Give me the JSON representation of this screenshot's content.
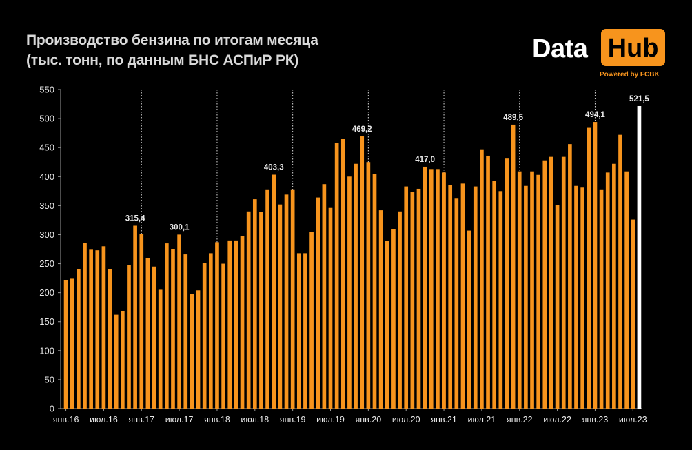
{
  "header": {
    "title_line1": "Производство бензина по итогам месяца",
    "title_line2": "(тыс. тонн, по данным БНС АСПиР РК)"
  },
  "logo": {
    "word1": "Data",
    "word2": "Hub",
    "tagline": "Powered by FCBK"
  },
  "colors": {
    "bar": "#f7941d",
    "last_bar": "#ffffff",
    "background": "#000000",
    "gridline": "#ffffff"
  },
  "chart_data": {
    "type": "bar",
    "ylim": [
      0,
      550
    ],
    "yticks": [
      0,
      50,
      100,
      150,
      200,
      250,
      300,
      350,
      400,
      450,
      500,
      550
    ],
    "xtick_labels": [
      "янв.16",
      "июл.16",
      "янв.17",
      "июл.17",
      "янв.18",
      "июл.18",
      "янв.19",
      "июл.19",
      "янв.20",
      "июл.20",
      "янв.21",
      "июл.21",
      "янв.22",
      "июл.22",
      "янв.23",
      "июл.23"
    ],
    "year_separators": [
      {
        "after_index": 12
      },
      {
        "after_index": 24
      },
      {
        "after_index": 36
      },
      {
        "after_index": 48
      },
      {
        "after_index": 60
      },
      {
        "after_index": 72
      },
      {
        "after_index": 84
      }
    ],
    "values": [
      222,
      224,
      240,
      286,
      274,
      273,
      280,
      240,
      162,
      168,
      248,
      315.4,
      301,
      260,
      245,
      205,
      285,
      275,
      300.1,
      266,
      198,
      204,
      251,
      268,
      287,
      250,
      290,
      290,
      298,
      340,
      361,
      339,
      378,
      403.3,
      352,
      369,
      378,
      268,
      268,
      305,
      364,
      387,
      346,
      458,
      465,
      400,
      422,
      469.2,
      425,
      404,
      342,
      289,
      310,
      340,
      383,
      373,
      379,
      417.0,
      413,
      413,
      407,
      386,
      362,
      388,
      307,
      383,
      447,
      436,
      393,
      375,
      431,
      489.5,
      409,
      384,
      409,
      403,
      428,
      434,
      351,
      434,
      456,
      384,
      381,
      484,
      494.1,
      378,
      407,
      422,
      472,
      409,
      326,
      521.5
    ],
    "highlight_last": true,
    "data_labels": [
      {
        "index": 11,
        "text": "315,4"
      },
      {
        "index": 18,
        "text": "300,1"
      },
      {
        "index": 33,
        "text": "403,3"
      },
      {
        "index": 47,
        "text": "469,2"
      },
      {
        "index": 57,
        "text": "417,0"
      },
      {
        "index": 71,
        "text": "489,5"
      },
      {
        "index": 84,
        "text": "494,1"
      },
      {
        "index": 91,
        "text": "521,5"
      }
    ]
  }
}
